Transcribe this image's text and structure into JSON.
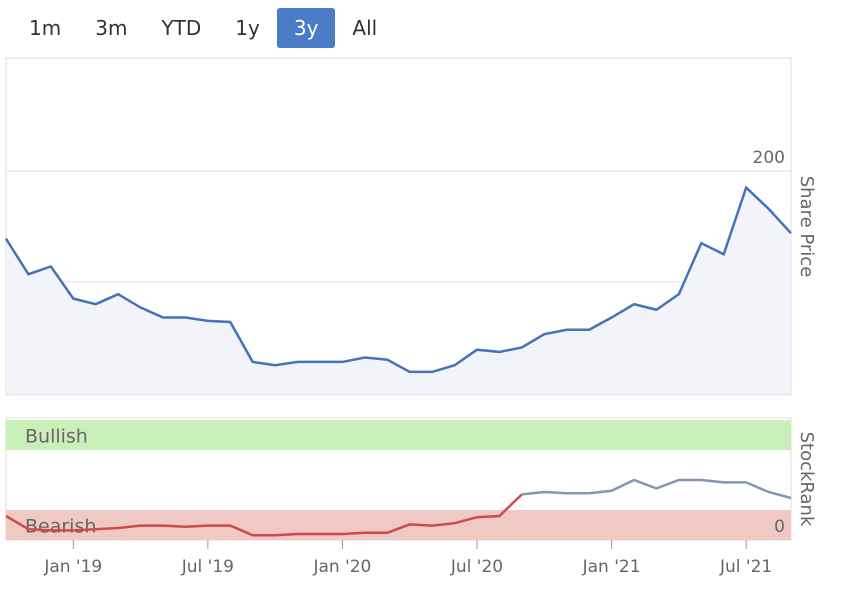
{
  "range_buttons": [
    "1m",
    "3m",
    "YTD",
    "1y",
    "3y",
    "All"
  ],
  "active_range": "3y",
  "chart_data": [
    {
      "type": "area",
      "y_label": "Share Price",
      "color": "#4572b8",
      "fill": "#f2f4fa",
      "x": [
        "2018-10",
        "2018-11",
        "2018-12",
        "2019-01",
        "2019-02",
        "2019-03",
        "2019-04",
        "2019-05",
        "2019-06",
        "2019-07",
        "2019-08",
        "2019-09",
        "2019-10",
        "2019-11",
        "2019-12",
        "2020-01",
        "2020-02",
        "2020-03",
        "2020-04",
        "2020-05",
        "2020-06",
        "2020-07",
        "2020-08",
        "2020-09",
        "2020-10",
        "2020-11",
        "2020-12",
        "2021-01",
        "2021-02",
        "2021-03",
        "2021-04",
        "2021-05",
        "2021-06",
        "2021-07",
        "2021-08",
        "2021-09"
      ],
      "values": [
        139,
        107,
        114,
        85,
        80,
        89,
        77,
        68,
        68,
        65,
        64,
        28,
        25,
        28,
        28,
        28,
        32,
        30,
        19,
        19,
        25,
        39,
        37,
        41,
        53,
        57,
        57,
        68,
        80,
        75,
        89,
        135,
        125,
        185,
        166,
        144
      ],
      "xlim": [
        "2018-10",
        "2021-09"
      ],
      "ylim": [
        0,
        300
      ],
      "yticks": [
        0,
        100,
        200
      ],
      "grid": true
    },
    {
      "type": "line",
      "y_label": "StockRank",
      "color": "#8597b5",
      "low_color": "#d04a4a",
      "x": [
        "2018-10",
        "2018-11",
        "2018-12",
        "2019-01",
        "2019-02",
        "2019-03",
        "2019-04",
        "2019-05",
        "2019-06",
        "2019-07",
        "2019-08",
        "2019-09",
        "2019-10",
        "2019-11",
        "2019-12",
        "2020-01",
        "2020-02",
        "2020-03",
        "2020-04",
        "2020-05",
        "2020-06",
        "2020-07",
        "2020-08",
        "2020-09",
        "2020-10",
        "2020-11",
        "2020-12",
        "2021-01",
        "2021-02",
        "2021-03",
        "2021-04",
        "2021-05",
        "2021-06",
        "2021-07",
        "2021-08",
        "2021-09"
      ],
      "values": [
        20,
        9,
        8,
        8,
        9,
        10,
        12,
        12,
        11,
        12,
        12,
        4,
        4,
        5,
        5,
        5,
        6,
        6,
        13,
        12,
        14,
        19,
        20,
        38,
        40,
        39,
        39,
        41,
        50,
        43,
        50,
        50,
        48,
        48,
        40,
        35
      ],
      "bands": [
        {
          "label": "Bullish",
          "from": 75,
          "to": 100,
          "color": "#c9f0b8",
          "text_color": "#2e8b2e"
        },
        {
          "label": "Bearish",
          "from": 0,
          "to": 25,
          "color": "#f0c9c4",
          "text_color": "#c84848"
        }
      ],
      "xlim": [
        "2018-10",
        "2021-09"
      ],
      "ylim": [
        0,
        100
      ],
      "yticks": [
        0
      ],
      "xticks": [
        {
          "value": "2019-01",
          "label": "Jan '19"
        },
        {
          "value": "2019-07",
          "label": "Jul '19"
        },
        {
          "value": "2020-01",
          "label": "Jan '20"
        },
        {
          "value": "2020-07",
          "label": "Jul '20"
        },
        {
          "value": "2021-01",
          "label": "Jan '21"
        },
        {
          "value": "2021-07",
          "label": "Jul '21"
        }
      ]
    }
  ]
}
